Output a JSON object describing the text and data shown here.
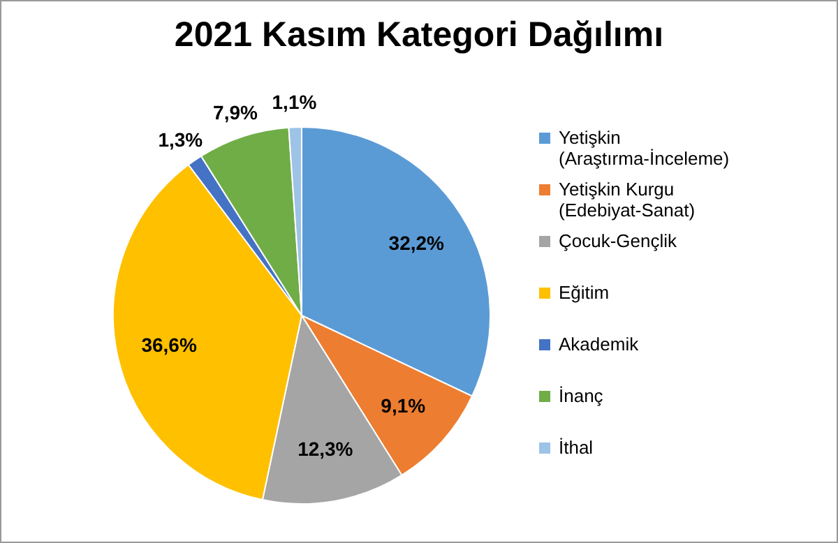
{
  "chart_data": {
    "type": "pie",
    "title": "2021 Kasım Kategori Dağılımı",
    "categories": [
      "Yetişkin (Araştırma-İnceleme)",
      "Yetişkin Kurgu (Edebiyat-Sanat)",
      "Çocuk-Gençlik",
      "Eğitim",
      "Akademik",
      "İnanç",
      "İthal"
    ],
    "values": [
      32.2,
      9.1,
      12.3,
      36.6,
      1.3,
      7.9,
      1.1
    ],
    "value_labels": [
      "32,2%",
      "9,1%",
      "12,3%",
      "36,6%",
      "1,3%",
      "7,9%",
      "1,1%"
    ],
    "colors": [
      "#5b9bd5",
      "#ed7d31",
      "#a5a5a5",
      "#ffc000",
      "#4472c4",
      "#70ad47",
      "#9dc3e6"
    ],
    "legend": "right"
  }
}
